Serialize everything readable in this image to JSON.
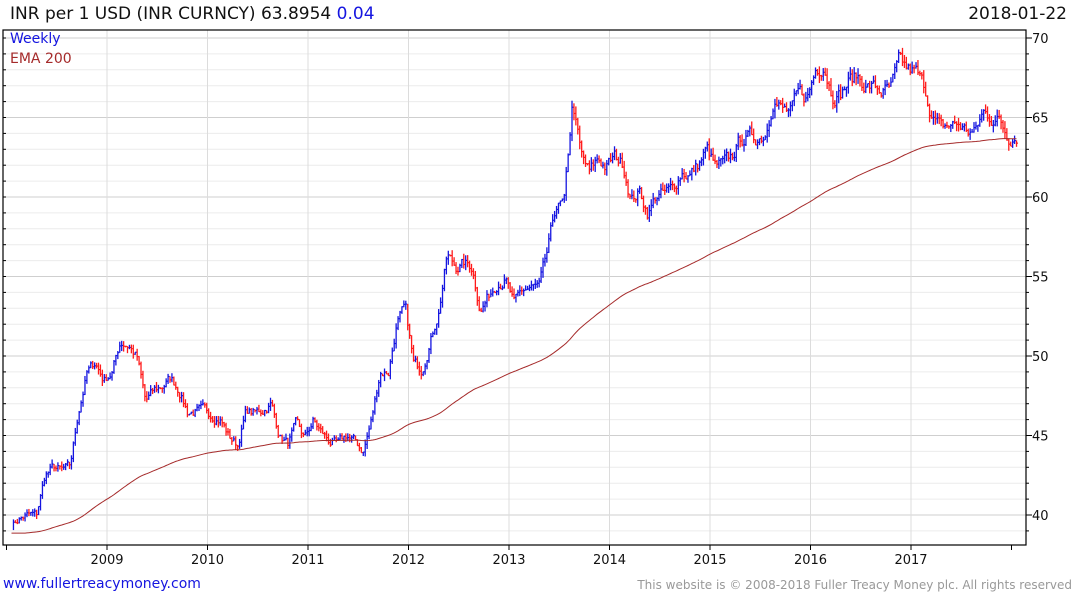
{
  "header": {
    "title": "INR per 1 USD (INR CURNCY) 63.8954",
    "change": "0.04",
    "date": "2018-01-22"
  },
  "legend": {
    "series": "Weekly",
    "ema": "EMA 200"
  },
  "footer": {
    "site": "www.fullertreacymoney.com",
    "copyright": "This website is © 2008-2018 Fuller Treacy Money plc. All rights reserved"
  },
  "colors": {
    "up": "#1515e0",
    "down": "#ff1a1a",
    "ema": "#a52a2a",
    "grid": "#dddddd"
  },
  "chart_data": {
    "type": "line",
    "title": "INR per 1 USD (INR CURNCY)",
    "frequency": "weekly (approximated by monthly closes)",
    "start": "2008-01",
    "monthly_close": [
      39.4,
      39.8,
      40.0,
      40.0,
      42.5,
      43.0,
      42.8,
      43.0,
      46.5,
      48.9,
      49.6,
      48.5,
      49.0,
      50.9,
      50.7,
      49.9,
      47.1,
      47.8,
      48.1,
      48.6,
      47.9,
      46.5,
      46.5,
      46.5,
      46.3,
      46.0,
      44.9,
      44.4,
      46.5,
      46.4,
      46.6,
      47.0,
      45.0,
      44.5,
      45.7,
      44.8,
      45.9,
      45.2,
      44.6,
      44.4,
      45.0,
      44.6,
      44.0,
      46.0,
      49.0,
      49.0,
      52.0,
      53.0,
      49.5,
      49.2,
      51.0,
      52.8,
      56.3,
      55.6,
      55.8,
      55.6,
      52.9,
      53.8,
      54.7,
      54.8,
      53.2,
      54.1,
      54.3,
      54.3,
      56.5,
      59.4,
      59.6,
      66.0,
      62.6,
      61.5,
      62.4,
      61.9,
      62.5,
      62.1,
      59.9,
      60.3,
      59.0,
      60.1,
      60.2,
      60.5,
      61.6,
      61.4,
      62.0,
      63.0,
      61.9,
      62.0,
      62.5,
      63.6,
      63.8,
      63.7,
      64.0,
      66.3,
      65.5,
      65.3,
      66.5,
      66.2,
      68.0,
      68.4,
      66.5,
      66.5,
      67.3,
      67.6,
      67.0,
      66.9,
      66.6,
      66.8,
      68.5,
      68.0,
      67.8,
      66.9,
      65.0,
      64.3,
      64.5,
      64.6,
      64.2,
      64.0,
      65.3,
      65.0,
      64.8,
      63.8,
      63.9
    ],
    "ema_period": 200,
    "x_ticks": [
      "2009",
      "2010",
      "2011",
      "2012",
      "2013",
      "2014",
      "2015",
      "2016",
      "2017"
    ],
    "y_ticks": [
      "40",
      "45",
      "50",
      "55",
      "60",
      "65",
      "70"
    ],
    "ylim": [
      38,
      70.5
    ],
    "xlim": [
      2008.0,
      2018.1
    ],
    "grid": true,
    "legend_position": "top-left"
  }
}
